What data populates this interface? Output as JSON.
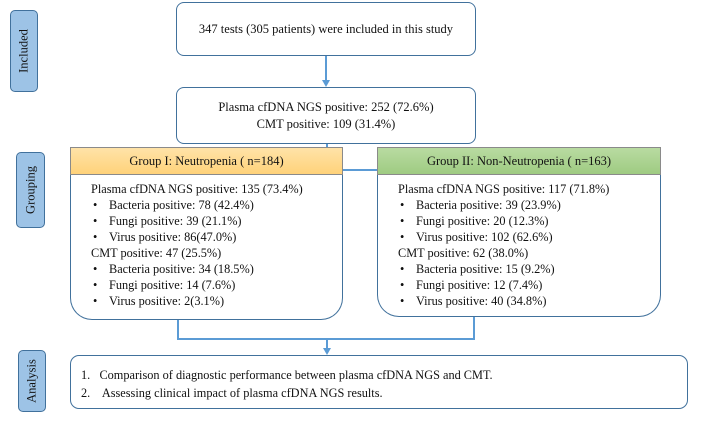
{
  "stages": {
    "included": "Included",
    "grouping": "Grouping",
    "analysis": "Analysis"
  },
  "top": {
    "text": "347 tests (305 patients) were included in this study"
  },
  "overall": {
    "line1": "Plasma cfDNA NGS positive: 252 (72.6%)",
    "line2": "CMT positive: 109 (31.4%)"
  },
  "group1": {
    "title": "Group I: Neutropenia ( n=184)",
    "color": "#ffd78c",
    "lines": [
      {
        "text": "Plasma cfDNA NGS positive: 135 (73.4%)",
        "bullet": false
      },
      {
        "text": "Bacteria positive: 78 (42.4%)",
        "bullet": true
      },
      {
        "text": "Fungi positive: 39 (21.1%)",
        "bullet": true
      },
      {
        "text": "Virus positive: 86(47.0%)",
        "bullet": true
      },
      {
        "text": "CMT positive: 47 (25.5%)",
        "bullet": false
      },
      {
        "text": "Bacteria positive: 34 (18.5%)",
        "bullet": true
      },
      {
        "text": "Fungi positive: 14 (7.6%)",
        "bullet": true
      },
      {
        "text": "Virus positive: 2(3.1%)",
        "bullet": true
      }
    ]
  },
  "group2": {
    "title": "Group II: Non-Neutropenia ( n=163)",
    "color": "#a9d18e",
    "lines": [
      {
        "text": "Plasma cfDNA NGS positive: 117 (71.8%)",
        "bullet": false
      },
      {
        "text": "Bacteria positive: 39 (23.9%)",
        "bullet": true
      },
      {
        "text": "Fungi positive: 20 (12.3%)",
        "bullet": true
      },
      {
        "text": "Virus positive: 102 (62.6%)",
        "bullet": true
      },
      {
        "text": "CMT positive: 62 (38.0%)",
        "bullet": false
      },
      {
        "text": "Bacteria positive: 15 (9.2%)",
        "bullet": true
      },
      {
        "text": "Fungi positive: 12 (7.4%)",
        "bullet": true
      },
      {
        "text": "Virus positive: 40 (34.8%)",
        "bullet": true
      }
    ]
  },
  "analysis": {
    "items": [
      "1.   Comparison of diagnostic performance between plasma cfDNA NGS and CMT.",
      "2.    Assessing clinical impact of plasma cfDNA NGS results."
    ]
  }
}
